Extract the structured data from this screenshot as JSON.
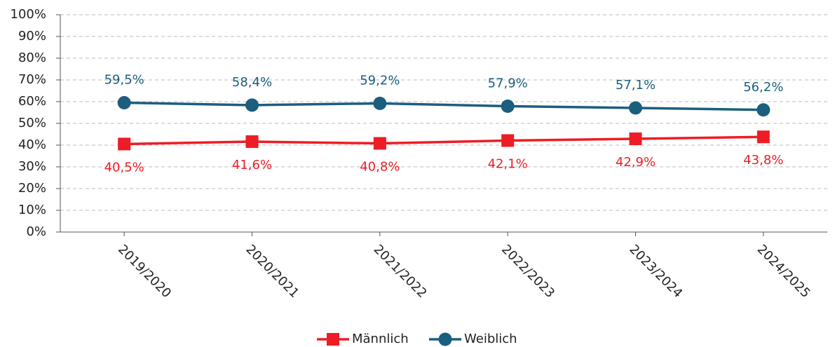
{
  "chart_data": {
    "type": "line",
    "categories": [
      "2019/2020",
      "2020/2021",
      "2021/2022",
      "2022/2023",
      "2023/2024",
      "2024/2025"
    ],
    "series": [
      {
        "name": "Männlich",
        "color": "#ee1c25",
        "marker": "square",
        "values": [
          40.5,
          41.6,
          40.8,
          42.1,
          42.9,
          43.8
        ],
        "value_labels": [
          "40,5%",
          "41,6%",
          "40,8%",
          "42,1%",
          "42,9%",
          "43,8%"
        ]
      },
      {
        "name": "Weiblich",
        "color": "#1b5e7e",
        "marker": "circle",
        "values": [
          59.5,
          58.4,
          59.2,
          57.9,
          57.1,
          56.2
        ],
        "value_labels": [
          "59,5%",
          "58,4%",
          "59,2%",
          "57,9%",
          "57,1%",
          "56,2%"
        ]
      }
    ],
    "ylim": [
      0,
      100
    ],
    "yticks": [
      {
        "value": 0,
        "label": "0%"
      },
      {
        "value": 10,
        "label": "10%"
      },
      {
        "value": 20,
        "label": "20%"
      },
      {
        "value": 30,
        "label": "30%"
      },
      {
        "value": 40,
        "label": "40%"
      },
      {
        "value": 50,
        "label": "50%"
      },
      {
        "value": 60,
        "label": "60%"
      },
      {
        "value": 70,
        "label": "70%"
      },
      {
        "value": 80,
        "label": "80%"
      },
      {
        "value": 90,
        "label": "90%"
      },
      {
        "value": 100,
        "label": "100%"
      }
    ],
    "grid": true,
    "legend": "bottom"
  }
}
